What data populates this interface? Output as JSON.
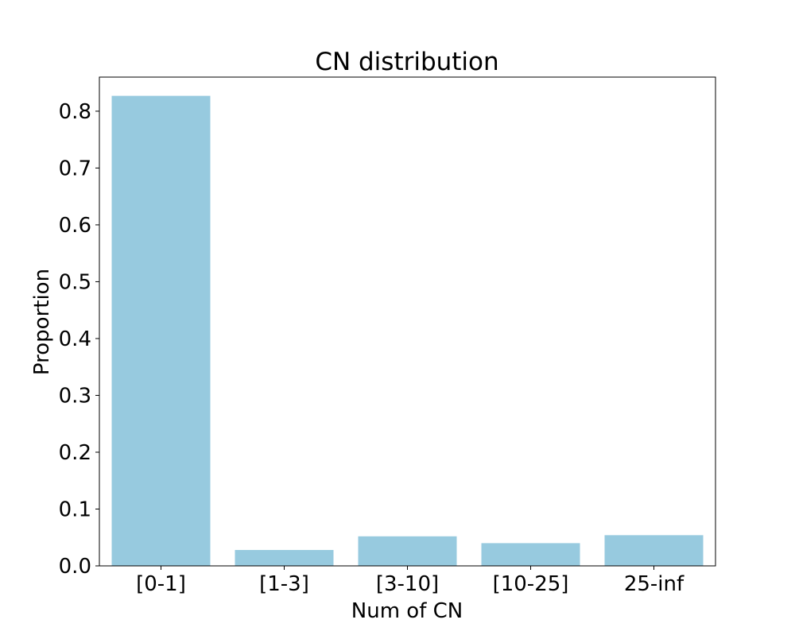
{
  "chart_data": {
    "type": "bar",
    "title": "CN distribution",
    "xlabel": "Num of CN",
    "ylabel": "Proportion",
    "categories": [
      "[0-1]",
      "[1-3]",
      "[3-10]",
      "[10-25]",
      "25-inf"
    ],
    "values": [
      0.827,
      0.028,
      0.052,
      0.04,
      0.054
    ],
    "ylim": [
      0,
      0.86
    ],
    "yticks": [
      0.0,
      0.1,
      0.2,
      0.3,
      0.4,
      0.5,
      0.6,
      0.7,
      0.8
    ],
    "ytick_labels": [
      "0.0",
      "0.1",
      "0.2",
      "0.3",
      "0.4",
      "0.5",
      "0.6",
      "0.7",
      "0.8"
    ],
    "bar_color": "#97cadf",
    "grid": false,
    "legend": "none"
  }
}
